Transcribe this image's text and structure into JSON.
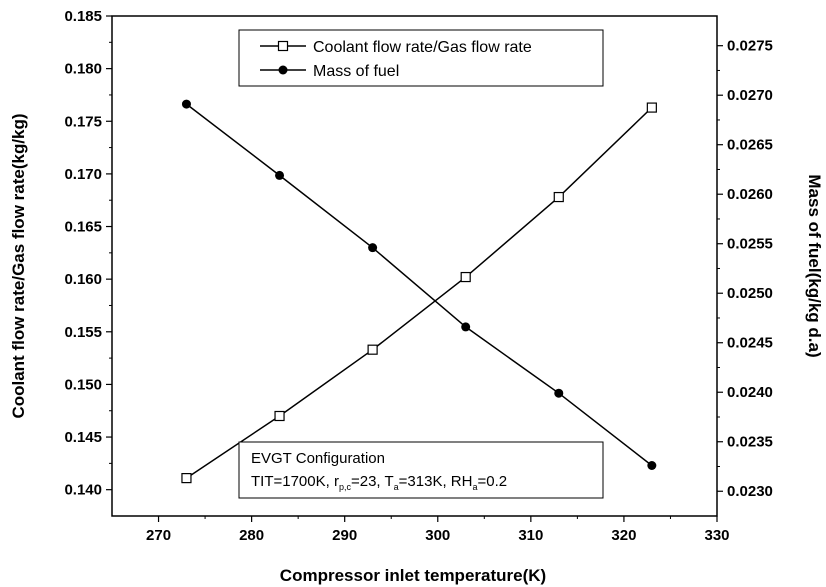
{
  "chart_data": {
    "type": "line",
    "xlabel": "Compressor inlet temperature(K)",
    "ylabel_left": "Coolant flow rate/Gas flow rate(kg/kg)",
    "ylabel_right": "Mass of fuel(kg/kg d.a)",
    "xlim": [
      265,
      330
    ],
    "ylim_left": [
      0.1375,
      0.185
    ],
    "ylim_right": [
      0.02275,
      0.0278
    ],
    "x_ticks": [
      "270",
      "280",
      "290",
      "300",
      "310",
      "320",
      "330"
    ],
    "y_left_ticks": [
      "0.140",
      "0.145",
      "0.150",
      "0.155",
      "0.160",
      "0.165",
      "0.170",
      "0.175",
      "0.180",
      "0.185"
    ],
    "y_right_ticks": [
      "0.0230",
      "0.0235",
      "0.0240",
      "0.0245",
      "0.0250",
      "0.0255",
      "0.0260",
      "0.0265",
      "0.0270",
      "0.0275"
    ],
    "series": [
      {
        "name": "Coolant flow rate/Gas flow rate",
        "axis": "left",
        "marker": "open-square",
        "x": [
          273,
          283,
          293,
          303,
          313,
          323
        ],
        "values": [
          0.1411,
          0.147,
          0.1533,
          0.1602,
          0.1678,
          0.1763
        ]
      },
      {
        "name": "Mass of fuel",
        "axis": "right",
        "marker": "filled-circle",
        "x": [
          273,
          283,
          293,
          303,
          313,
          323
        ],
        "values": [
          0.02691,
          0.02619,
          0.02546,
          0.02466,
          0.02399,
          0.02326
        ]
      }
    ],
    "legend_position": "top-center",
    "annotation": {
      "line1": "EVGT Configuration",
      "l2_a": "TIT=1700K, r",
      "l2_a_sub": "p,c",
      "l2_b": "=23, T",
      "l2_b_sub": "a",
      "l2_c": "=313K, RH",
      "l2_c_sub": "a",
      "l2_d": "=0.2"
    },
    "grid": false
  }
}
